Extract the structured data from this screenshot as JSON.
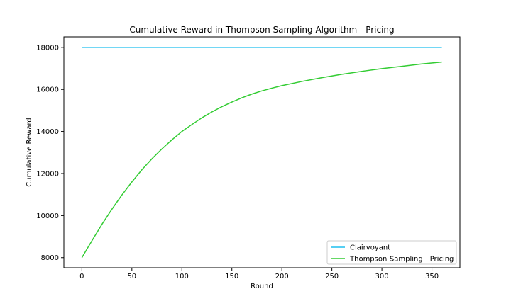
{
  "chart_data": {
    "type": "line",
    "title": "Cumulative Reward in Thompson Sampling Algorithm - Pricing",
    "xlabel": "Round",
    "ylabel": "Cumulative Reward",
    "xlim": [
      -18,
      378
    ],
    "ylim": [
      7520,
      18500
    ],
    "x_ticks": [
      0,
      50,
      100,
      150,
      200,
      250,
      300,
      350
    ],
    "y_ticks": [
      8000,
      10000,
      12000,
      14000,
      16000,
      18000
    ],
    "grid": false,
    "legend_position": "lower-right",
    "series": [
      {
        "name": "Clairvoyant",
        "color": "#1fbfef",
        "x": [
          0,
          360
        ],
        "y": [
          18000,
          18000
        ]
      },
      {
        "name": "Thompson-Sampling - Pricing",
        "color": "#33cc33",
        "x": [
          0,
          10,
          20,
          30,
          40,
          50,
          60,
          70,
          80,
          90,
          100,
          110,
          120,
          130,
          140,
          150,
          160,
          170,
          180,
          190,
          200,
          220,
          240,
          260,
          280,
          300,
          320,
          340,
          360
        ],
        "y": [
          8000,
          8800,
          9580,
          10300,
          10980,
          11600,
          12180,
          12700,
          13170,
          13600,
          14000,
          14330,
          14650,
          14930,
          15180,
          15400,
          15600,
          15780,
          15930,
          16060,
          16180,
          16380,
          16560,
          16720,
          16860,
          16990,
          17100,
          17210,
          17300
        ]
      }
    ]
  }
}
